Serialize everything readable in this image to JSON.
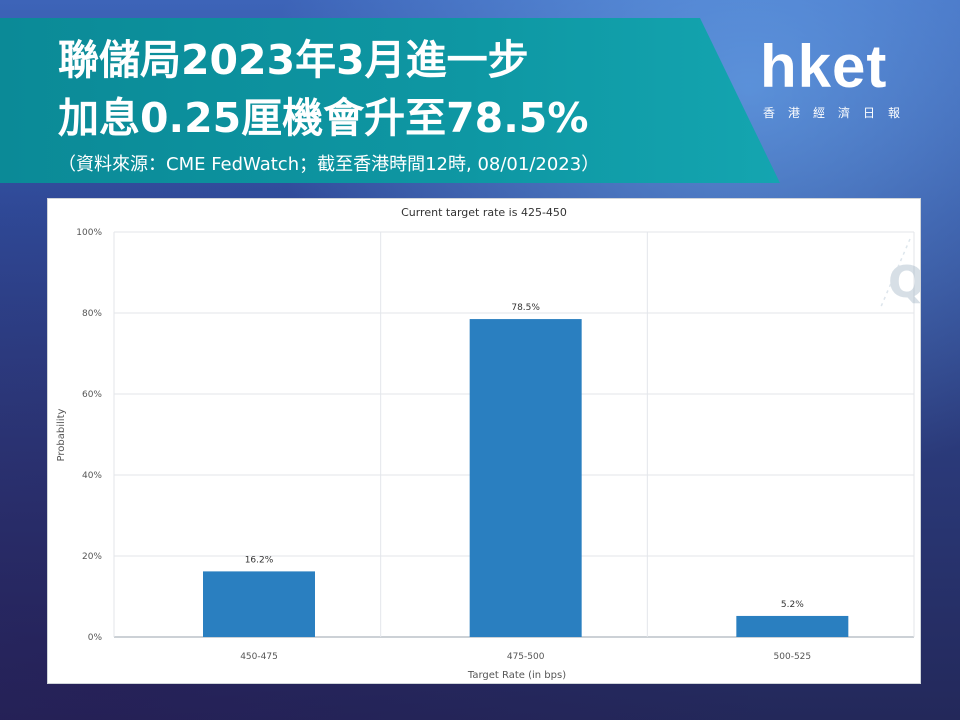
{
  "header": {
    "title_line1": "聯儲局2023年3月進一步",
    "title_line2": "加息0.25厘機會升至78.5%",
    "source": "（資料來源：CME FedWatch；截至香港時間12時, 08/01/2023）"
  },
  "logo": {
    "word": "hket",
    "subtitle": "香港經濟日報"
  },
  "chart_data": {
    "type": "bar",
    "title": "Current target rate is 425-450",
    "xlabel": "Target Rate (in bps)",
    "ylabel": "Probability",
    "categories": [
      "450-475",
      "475-500",
      "500-525"
    ],
    "values": [
      16.2,
      78.5,
      5.2
    ],
    "value_labels": [
      "16.2%",
      "78.5%",
      "5.2%"
    ],
    "ylim": [
      0,
      100
    ],
    "yticks": [
      "0%",
      "20%",
      "40%",
      "60%",
      "80%",
      "100%"
    ],
    "grid": true,
    "bar_color": "#2a7fc0"
  }
}
